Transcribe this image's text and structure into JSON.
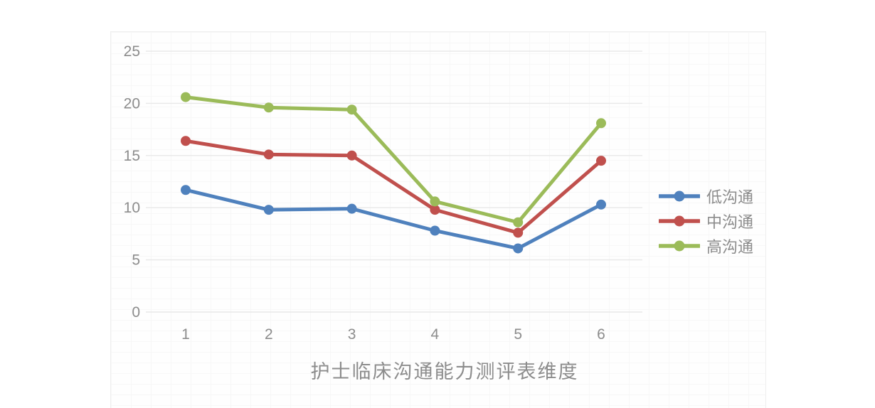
{
  "chart_data": {
    "type": "line",
    "x": [
      1,
      2,
      3,
      4,
      5,
      6
    ],
    "xticks": [
      "1",
      "2",
      "3",
      "4",
      "5",
      "6"
    ],
    "series": [
      {
        "name": "低沟通",
        "color": "#4F81BD",
        "values": [
          11.7,
          9.8,
          9.9,
          7.8,
          6.1,
          10.3
        ]
      },
      {
        "name": "中沟通",
        "color": "#C0504D",
        "values": [
          16.4,
          15.1,
          15.0,
          9.8,
          7.6,
          14.5
        ]
      },
      {
        "name": "高沟通",
        "color": "#9BBB59",
        "values": [
          20.6,
          19.6,
          19.4,
          10.6,
          8.6,
          18.1
        ]
      }
    ],
    "xlabel": "护士临床沟通能力测评表维度",
    "ylim": [
      0,
      25
    ],
    "yticks": [
      0,
      5,
      10,
      15,
      20,
      25
    ],
    "grid": true,
    "legend_position": "right",
    "axis_text_color": "#8c8c8c",
    "gridline_color": "#e8e8e8",
    "marker": "circle"
  }
}
